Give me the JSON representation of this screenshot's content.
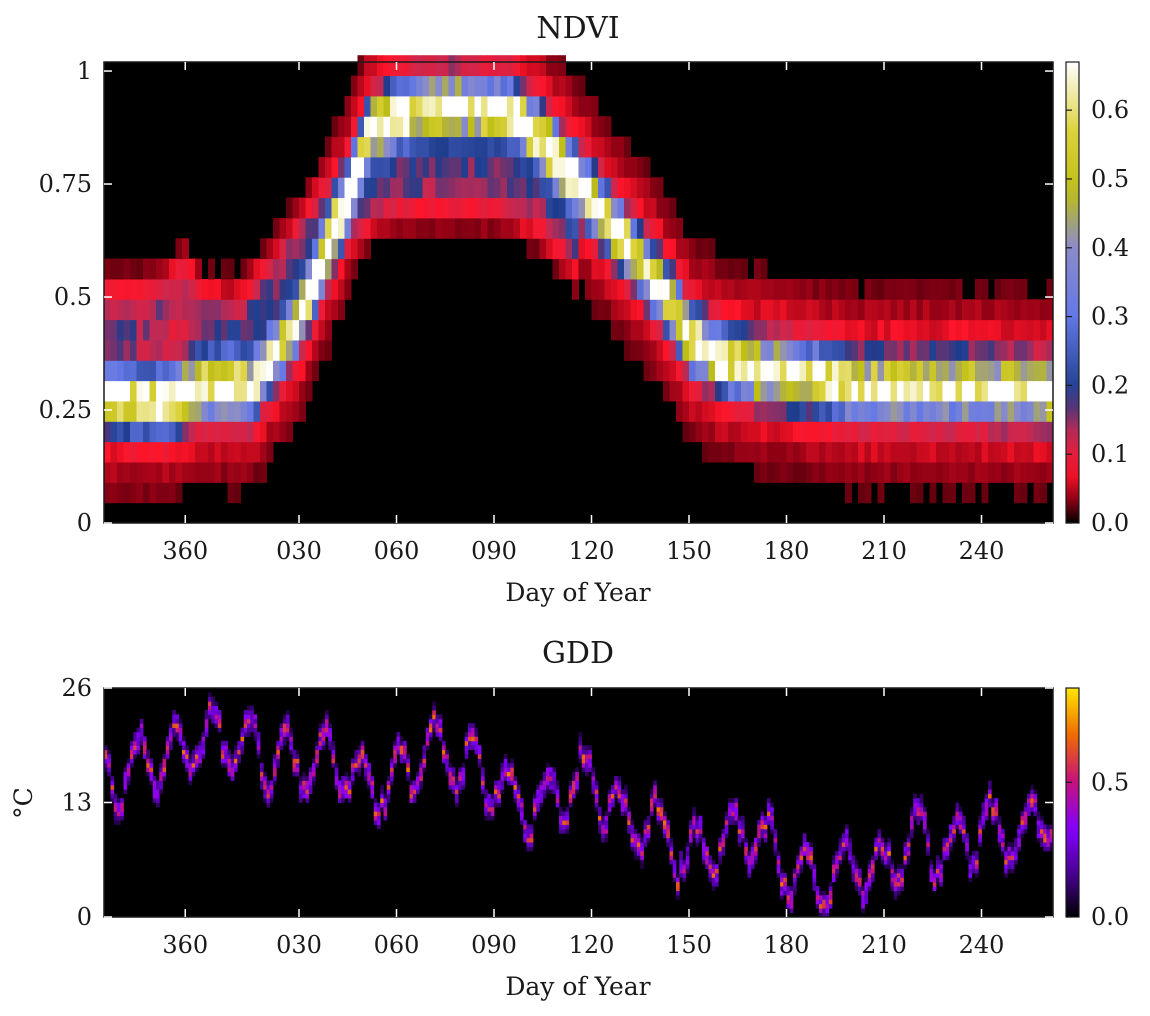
{
  "chart_data": [
    {
      "type": "heatmap",
      "title": "NDVI",
      "xlabel": "Day of Year",
      "ylabel": "",
      "x_ticks": [
        "360",
        "030",
        "060",
        "090",
        "120",
        "150",
        "180",
        "210",
        "240"
      ],
      "x_tick_days": [
        -5,
        30,
        60,
        90,
        120,
        150,
        180,
        210,
        240
      ],
      "x_range": [
        -30,
        262
      ],
      "ylim": [
        0,
        1.02
      ],
      "y_ticks": [
        {
          "value": 0,
          "label": "0"
        },
        {
          "value": 0.25,
          "label": "0.25"
        },
        {
          "value": 0.5,
          "label": "0.5"
        },
        {
          "value": 0.75,
          "label": "0.75"
        },
        {
          "value": 1,
          "label": "1"
        }
      ],
      "colorbar": {
        "colormap": "gist_stern-like",
        "range": [
          0,
          0.67
        ],
        "ticks": [
          {
            "value": 0.0,
            "label": "0.0"
          },
          {
            "value": 0.1,
            "label": "0.1"
          },
          {
            "value": 0.2,
            "label": "0.2"
          },
          {
            "value": 0.3,
            "label": "0.3"
          },
          {
            "value": 0.4,
            "label": "0.4"
          },
          {
            "value": 0.5,
            "label": "0.5"
          },
          {
            "value": 0.6,
            "label": "0.6"
          }
        ]
      },
      "trajectory": {
        "day": [
          -30,
          -18,
          -10,
          -5,
          0,
          5,
          15,
          30,
          45,
          52,
          60,
          70,
          80,
          95,
          105,
          115,
          125,
          135,
          145,
          150,
          160,
          170,
          180,
          190,
          200,
          210,
          220,
          240,
          262
        ],
        "ndvi": [
          0.28,
          0.27,
          0.27,
          0.29,
          0.3,
          0.3,
          0.3,
          0.45,
          0.72,
          0.87,
          0.9,
          0.92,
          0.92,
          0.91,
          0.85,
          0.76,
          0.67,
          0.58,
          0.48,
          0.41,
          0.36,
          0.34,
          0.33,
          0.32,
          0.3,
          0.3,
          0.3,
          0.3,
          0.29
        ]
      },
      "secondary_trajectory": {
        "day": [
          -30,
          -20,
          -10,
          -5,
          0,
          10,
          20,
          30,
          45,
          60,
          75,
          90,
          105,
          115
        ],
        "ndvi": [
          0.45,
          0.45,
          0.48,
          0.52,
          0.44,
          0.42,
          0.5,
          0.6,
          0.72,
          0.76,
          0.76,
          0.76,
          0.72,
          0.64
        ]
      }
    },
    {
      "type": "heatmap",
      "title": "GDD",
      "xlabel": "Day of Year",
      "ylabel": "°C",
      "x_ticks": [
        "360",
        "030",
        "060",
        "090",
        "120",
        "150",
        "180",
        "210",
        "240"
      ],
      "x_tick_days": [
        -5,
        30,
        60,
        90,
        120,
        150,
        180,
        210,
        240
      ],
      "x_range": [
        -30,
        262
      ],
      "ylim": [
        0,
        26
      ],
      "y_ticks": [
        {
          "value": 0,
          "label": "0"
        },
        {
          "value": 13,
          "label": "13"
        },
        {
          "value": 26,
          "label": "26"
        }
      ],
      "colorbar": {
        "colormap": "gnuplot",
        "range": [
          0,
          0.85
        ],
        "ticks": [
          {
            "value": 0.0,
            "label": "0.0"
          },
          {
            "value": 0.5,
            "label": "0.5"
          }
        ]
      },
      "trajectory": {
        "day": [
          -30,
          -20,
          -10,
          0,
          10,
          20,
          30,
          40,
          50,
          60,
          70,
          80,
          90,
          100,
          110,
          120,
          130,
          140,
          150,
          160,
          170,
          180,
          190,
          200,
          210,
          220,
          230,
          240,
          250,
          262
        ],
        "gdd": [
          15,
          17,
          18,
          20,
          20,
          18,
          17,
          18,
          15,
          15,
          19,
          17,
          15,
          12,
          14,
          16,
          10,
          10,
          6,
          9,
          10,
          5,
          4,
          6,
          5,
          9,
          7,
          10,
          9,
          11
        ]
      }
    }
  ]
}
